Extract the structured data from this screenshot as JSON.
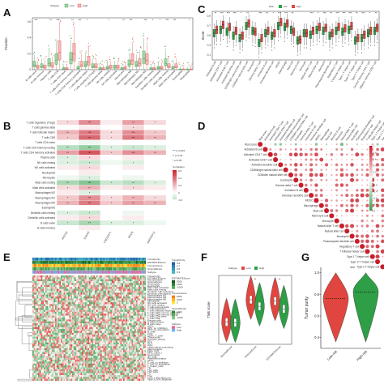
{
  "colors": {
    "low": "#2e9e47",
    "high": "#e0463f",
    "pink_light": "#f6b7bd",
    "green_light": "#9fd6a5",
    "heat_high": "#c81d2a",
    "heat_low": "#ffffff"
  },
  "chart_data": [
    {
      "panel": "A",
      "type": "box",
      "ylabel": "Fraction",
      "legend_title": "Subtype",
      "legend": [
        "Low",
        "High"
      ],
      "yticks": [
        "0",
        "0.2",
        "0.4",
        "0.6"
      ],
      "ylim": [
        0,
        0.65
      ],
      "categories": [
        "B cells naive",
        "B cells memory",
        "Plasma cells",
        "T cells CD8",
        "T cells CD4 naive",
        "T cells CD4 memory resting",
        "T cells CD4 memory activated",
        "T cells follicular helper",
        "T cells regulatory (Tregs)",
        "T cells gamma delta",
        "NK cells resting",
        "NK cells activated",
        "Monocytes",
        "Macrophages M0",
        "Macrophages M1",
        "Macrophages M2",
        "Dendritic cells resting",
        "Dendritic cells activated",
        "Mast cells resting",
        "Mast cells activated",
        "Eosinophils",
        "Neutrophils"
      ],
      "significance": [
        "***",
        "",
        "**",
        "***",
        "",
        "**",
        "***",
        "*",
        "",
        "",
        "*",
        "",
        "**",
        "***",
        "",
        "***",
        "*",
        "*",
        "***",
        "***",
        "",
        "*"
      ],
      "series": [
        {
          "name": "Low",
          "median": [
            0.06,
            0.04,
            0.08,
            0.12,
            0.01,
            0.13,
            0.02,
            0.06,
            0.04,
            0.01,
            0.02,
            0.03,
            0.01,
            0.07,
            0.06,
            0.14,
            0.01,
            0.02,
            0.08,
            0.02,
            0.0,
            0.0
          ]
        },
        {
          "name": "High",
          "median": [
            0.03,
            0.03,
            0.05,
            0.22,
            0.01,
            0.2,
            0.06,
            0.1,
            0.04,
            0.01,
            0.03,
            0.03,
            0.02,
            0.12,
            0.08,
            0.12,
            0.01,
            0.02,
            0.04,
            0.04,
            0.0,
            0.0
          ]
        }
      ]
    },
    {
      "panel": "B",
      "type": "heatmap",
      "legend_title": "Correlation",
      "legend_ticks": [
        "0.6",
        "0.4",
        "0.2",
        "0",
        "-0.2"
      ],
      "p_legend": [
        "p<0.001",
        "p<0.01",
        "p<0.05"
      ],
      "rows": [
        "T cells regulatory (Tregs)",
        "T cells gamma delta",
        "T cells follicular helper",
        "T cells CD8",
        "T cells CD4 naive",
        "T cells CD4 memory resting",
        "T cells CD4 memory activated",
        "Plasma cells",
        "NK cells resting",
        "NK cells activated",
        "Neutrophils",
        "Monocytes",
        "Mast cells resting",
        "Mast cells activated",
        "Macrophages M2",
        "Macrophages M1",
        "Macrophages M0",
        "Eosinophils",
        "Dendritic cells resting",
        "Dendritic cells activated",
        "B cells naive",
        "B cells memory"
      ],
      "columns": [
        "RHCG3",
        "CDKN3",
        "LINC02271",
        "RECQ",
        "SNRPGP12"
      ],
      "values": [
        [
          0.1,
          0.3,
          0.05,
          0.25,
          0.1
        ],
        [
          0,
          0.05,
          0,
          0.1,
          0
        ],
        [
          0.2,
          0.35,
          0.1,
          0.3,
          0.15
        ],
        [
          0.15,
          0.4,
          0.1,
          0.35,
          0.2
        ],
        [
          0,
          -0.05,
          0,
          0,
          0
        ],
        [
          -0.2,
          -0.3,
          -0.1,
          -0.15,
          -0.1
        ],
        [
          0.25,
          0.45,
          0.15,
          0.3,
          0.2
        ],
        [
          -0.1,
          0.1,
          0,
          0.05,
          0
        ],
        [
          -0.1,
          -0.15,
          -0.05,
          -0.1,
          0
        ],
        [
          0.05,
          0.1,
          0,
          0.05,
          0
        ],
        [
          0,
          0.05,
          0,
          0,
          0
        ],
        [
          -0.05,
          -0.1,
          0,
          -0.05,
          0
        ],
        [
          -0.25,
          -0.35,
          -0.15,
          -0.2,
          -0.1
        ],
        [
          0.1,
          0.2,
          0.05,
          0.1,
          0.05
        ],
        [
          0.05,
          -0.1,
          0,
          0,
          0
        ],
        [
          0.15,
          0.3,
          0.1,
          0.2,
          0.1
        ],
        [
          0.2,
          0.35,
          0.15,
          0.25,
          0.2
        ],
        [
          0,
          0,
          0,
          0,
          0
        ],
        [
          -0.1,
          -0.15,
          0,
          -0.05,
          0
        ],
        [
          0.05,
          0.1,
          0,
          0.05,
          0
        ],
        [
          -0.15,
          -0.25,
          -0.1,
          -0.1,
          -0.05
        ],
        [
          0,
          0.05,
          0,
          0,
          0
        ]
      ]
    },
    {
      "panel": "C",
      "type": "box",
      "ylabel": "Score",
      "legend_title": "Risk",
      "legend": [
        "low",
        "high"
      ],
      "yticks": [
        "0.1",
        "0.3",
        "0.5",
        "0.7",
        "0.9"
      ],
      "ylim": [
        0.0,
        1.0
      ],
      "categories": [
        "Activated B cell",
        "Activated CD4 T cell",
        "Activated CD8 T cell",
        "Activated dendritic cell",
        "CD56bright natural killer cell",
        "CD56dim natural killer cell",
        "Eosinophil",
        "Gamma delta T cell",
        "Immature B cell",
        "Immature dendritic cell",
        "MDSC",
        "Macrophage",
        "Mast cell",
        "Memory B cell",
        "Monocyte",
        "Natural killer T cell",
        "Natural killer cell",
        "Neutrophil",
        "Plasmacytoid dendritic cell",
        "Regulatory T cell",
        "T follicular helper cell",
        "Type 1 T helper cell",
        "Type 17 T helper cell",
        "Type 2 T helper cell",
        "Central memory CD4 T cell",
        "Effector memory CD8 T cell"
      ],
      "significance": [
        "**",
        "***",
        "***",
        "***",
        "*",
        "**",
        "",
        "***",
        "**",
        "*",
        "***",
        "***",
        "**",
        "",
        "",
        "***",
        "*",
        "***",
        "**",
        "***",
        "***",
        "***",
        "**",
        "***",
        "*",
        "**"
      ],
      "series": [
        {
          "name": "low",
          "median": [
            0.55,
            0.62,
            0.58,
            0.5,
            0.45,
            0.7,
            0.6,
            0.35,
            0.55,
            0.5,
            0.7,
            0.68,
            0.62,
            0.4,
            0.55,
            0.52,
            0.62,
            0.6,
            0.5,
            0.6,
            0.58,
            0.62,
            0.4,
            0.45,
            0.55,
            0.6
          ]
        },
        {
          "name": "high",
          "median": [
            0.62,
            0.72,
            0.68,
            0.6,
            0.5,
            0.75,
            0.58,
            0.45,
            0.6,
            0.55,
            0.78,
            0.75,
            0.58,
            0.42,
            0.55,
            0.6,
            0.68,
            0.66,
            0.55,
            0.68,
            0.65,
            0.7,
            0.45,
            0.52,
            0.6,
            0.66
          ]
        }
      ]
    },
    {
      "panel": "D",
      "type": "heatmap",
      "legend_ticks": [
        "1",
        "0.8",
        "0.6",
        "0.4",
        "0.2",
        "0",
        "-0.2",
        "-0.4",
        "-0.6",
        "-0.8",
        "-1"
      ],
      "labels": [
        "Risk score",
        "Activated B cell",
        "Activated CD4 T cell",
        "Activated CD8 T cell",
        "Activated dendritic cell",
        "CD56bright natural killer cell",
        "CD56dim natural killer cell",
        "Eosinophil",
        "Gamma delta T cell",
        "Immature B cell",
        "Immature dendritic cell",
        "MDSC",
        "Macrophage",
        "Mast cell",
        "Memory B cell",
        "Monocyte",
        "Natural killer T cell",
        "Natural killer cell",
        "Neutrophil",
        "Plasmacytoid dendritic cell",
        "Regulatory T cell",
        "T follicular helper cell",
        "Type 1 T helper cell",
        "Type 17 T helper cell",
        "Type 2 T helper cell"
      ]
    },
    {
      "panel": "E",
      "type": "heatmap",
      "annotation_rows": [
        "Tumorpurity",
        "ESTIMATEScore",
        "ImmuneScore",
        "StromalScore",
        "Subtype"
      ],
      "legend_blocks": [
        {
          "title": "TumorPurity",
          "ticks": [
            "0.9",
            "0.7",
            "0.5",
            "0.3"
          ]
        },
        {
          "title": "ESTIMATEScore",
          "ticks": [
            "3000",
            "1000",
            "-1000"
          ]
        },
        {
          "title": "ImmuneScore",
          "ticks": [
            "2000",
            "1000",
            "0"
          ]
        },
        {
          "title": "StromalScore",
          "ticks": [
            "1000",
            "0",
            "-1000"
          ]
        },
        {
          "title": "Subtype",
          "ticks": [
            "Low",
            "High"
          ]
        }
      ],
      "rows": [
        "Tumorpurity",
        "ESTIMATEScore",
        "ImmuneScore",
        "StromalScore",
        "Neutrophils",
        "Eosinophils",
        "Mast cells activated",
        "Mast cells resting",
        "Dendritic cells activated",
        "Dendritic cells resting",
        "Macrophages M2",
        "Macrophages M1",
        "Macrophages M0",
        "Monocytes",
        "NK cells activated",
        "NK cells resting",
        "T cells gamma delta",
        "T cells regulatory",
        "T cells follicular helper",
        "T cells CD4 memory activated",
        "T cells CD4 memory resting",
        "T cells CD4 naive",
        "T cells CD8",
        "Plasma cells",
        "B cells memory",
        "B cells naive",
        "aDCs",
        "APC_co_inhibition",
        "APC_co_stimulation",
        "B_cells",
        "CCR",
        "CD8+_T_cells",
        "Check-point",
        "Cytolytic_activity",
        "DCs",
        "HLA",
        "iDCs",
        "Inflammation-promoting",
        "Macrophages",
        "Mast_cells",
        "MHC_class_I",
        "Neutrophils",
        "NK_cells",
        "Parainflammation",
        "pDCs",
        "T_cell_co-inhibition",
        "T_cell_co-stimulation",
        "T_helper_cells",
        "Tfh",
        "Th1_cells",
        "Th2_cells",
        "TIL",
        "Treg",
        "Type_I_IFN_Reponse",
        "Type_II_IFN_Reponse"
      ]
    },
    {
      "panel": "F",
      "type": "violin",
      "ylabel": "TME score",
      "legend_title": "Subtype",
      "legend": [
        "Low",
        "High"
      ],
      "categories": [
        "StromalScore",
        "ImmuneScore",
        "ESTIMATEScore"
      ],
      "significance": [
        "",
        "**",
        "**"
      ],
      "series": [
        {
          "name": "Low",
          "median": [
            -300,
            1400,
            1300
          ]
        },
        {
          "name": "High",
          "median": [
            -350,
            900,
            700
          ]
        }
      ]
    },
    {
      "panel": "G",
      "type": "violin",
      "ylabel": "Tumor purity",
      "yticks": [
        "1.0",
        "0.8",
        "0.6",
        "0.4"
      ],
      "ylim": [
        0.3,
        1.05
      ],
      "categories": [
        "Low-risk",
        "High-risk"
      ],
      "significance": "***",
      "series": [
        {
          "name": "Low-risk",
          "median": 0.76
        },
        {
          "name": "High-risk",
          "median": 0.82
        }
      ]
    }
  ]
}
